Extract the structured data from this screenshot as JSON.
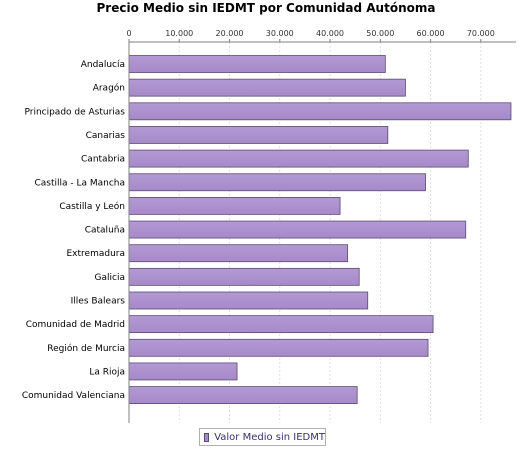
{
  "chart_data": {
    "type": "bar",
    "orientation": "horizontal",
    "title": "Precio Medio sin IEDMT por Comunidad Autónoma",
    "xlabel": "",
    "ylabel": "",
    "xlim": [
      0,
      77000
    ],
    "x_ticks": [
      "0",
      "10.000",
      "20.000",
      "30.000",
      "40.000",
      "50.000",
      "60.000",
      "70.000"
    ],
    "x_tick_values": [
      0,
      10000,
      20000,
      30000,
      40000,
      50000,
      60000,
      70000
    ],
    "grid": true,
    "legend_position": "bottom",
    "bar_color": "#a689c9",
    "categories": [
      "Andalucía",
      "Aragón",
      "Principado de Asturias",
      "Canarias",
      "Cantabria",
      "Castilla - La Mancha",
      "Castilla y León",
      "Cataluña",
      "Extremadura",
      "Galicia",
      "Illes Balears",
      "Comunidad de Madrid",
      "Región de Murcia",
      "La Rioja",
      "Comunidad Valenciana"
    ],
    "series": [
      {
        "name": "Valor Medio sin IEDMT",
        "values": [
          51000,
          55000,
          76000,
          51500,
          67500,
          59000,
          42000,
          67000,
          43500,
          45800,
          47500,
          60500,
          59500,
          21500,
          45400
        ]
      }
    ]
  }
}
